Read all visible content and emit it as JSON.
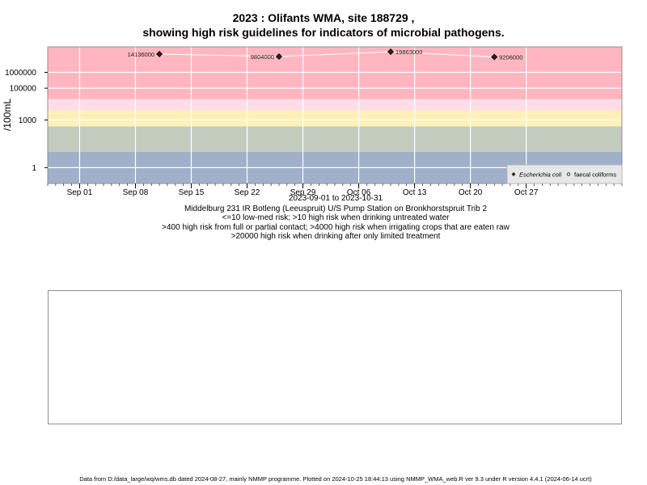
{
  "chart_data": {
    "type": "scatter",
    "title_line1": "2023 : Olifants WMA, site 188729 ,",
    "title_line2": "showing high risk guidelines for indicators of microbial pathogens.",
    "ylabel": "/100mL",
    "yscale": "log",
    "ylim": [
      0.1,
      40000000
    ],
    "xlim": [
      "2023-08-28",
      "2023-11-08"
    ],
    "y_ticks": [
      1,
      1000,
      100000,
      1000000
    ],
    "y_tick_labels": [
      "1",
      "1000",
      "100000",
      "1000000"
    ],
    "x_ticks": [
      "2023-09-01",
      "2023-09-08",
      "2023-09-15",
      "2023-09-22",
      "2023-09-29",
      "2023-10-06",
      "2023-10-13",
      "2023-10-20",
      "2023-10-27"
    ],
    "x_tick_labels": [
      "Sep 01",
      "Sep 08",
      "Sep 15",
      "Sep 22",
      "Sep 29",
      "Oct 06",
      "Oct 13",
      "Oct 20",
      "Oct 27"
    ],
    "grid": true,
    "bands": [
      {
        "from": 0.1,
        "to": 10,
        "color": "#a0b0c8"
      },
      {
        "from": 10,
        "to": 400,
        "color": "#c3cbbe"
      },
      {
        "from": 400,
        "to": 4000,
        "color": "#fff0b8"
      },
      {
        "from": 4000,
        "to": 20000,
        "color": "#ffdde8"
      },
      {
        "from": 20000,
        "to": 40000000,
        "color": "#ffb6c1"
      }
    ],
    "series": [
      {
        "name": "Escherichia coli",
        "marker": "filled-diamond",
        "points": [
          {
            "x": "2023-09-11",
            "y": 14136000,
            "label": "14136000"
          },
          {
            "x": "2023-09-26",
            "y": 9804000,
            "label": "9804000"
          },
          {
            "x": "2023-10-10",
            "y": 19863000,
            "label": "19863000"
          },
          {
            "x": "2023-10-23",
            "y": 9206000,
            "label": "9206000"
          }
        ]
      },
      {
        "name": "faecal coliforms",
        "marker": "open-circle",
        "points": []
      }
    ],
    "legend_position": "bottom-right",
    "subtitles": [
      "2023-09-01 to 2023-10-31",
      "Middelburg 231 IR Botleng (Leeuspruit) U/S Pump Station on Bronkhorstspruit Trib 2",
      "<=10 low-med risk; >10 high risk when drinking untreated water",
      ">400 high risk from full or partial contact; >4000 high risk when irrigating crops that are eaten raw",
      ">20000 high risk when drinking after only limited treatment"
    ]
  },
  "footer": "Data from D:/data_large/wq/wms.db dated 2024-08-27, mainly NMMP programme. Plotted on 2024-10-25 18:44:13 using NMMP_WMA_web.R ver 9.3 under R version 4.4.1 (2024-06-14 ucrt)"
}
